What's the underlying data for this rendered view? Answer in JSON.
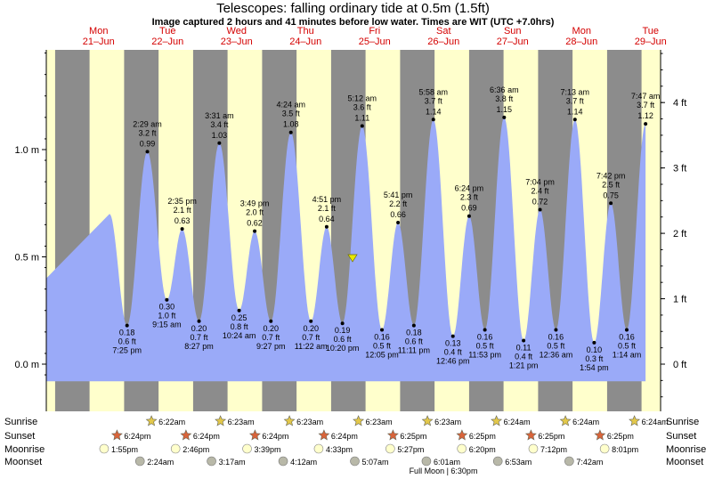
{
  "title": "Telescopes: falling  ordinary tide at 0.5m (1.5ft)",
  "subtitle": "Image captured 2 hours and 41 minutes before low water. Times are WIT (UTC +7.0hrs)",
  "days": [
    {
      "name": "Mon",
      "date": "21–Jun"
    },
    {
      "name": "Tue",
      "date": "22–Jun"
    },
    {
      "name": "Wed",
      "date": "23–Jun"
    },
    {
      "name": "Thu",
      "date": "24–Jun"
    },
    {
      "name": "Fri",
      "date": "25–Jun"
    },
    {
      "name": "Sat",
      "date": "26–Jun"
    },
    {
      "name": "Sun",
      "date": "27–Jun"
    },
    {
      "name": "Mon",
      "date": "28–Jun"
    },
    {
      "name": "Tue",
      "date": "29–Jun"
    }
  ],
  "left_axis": [
    "1.0 m",
    "0.5 m",
    "0.0 m"
  ],
  "right_axis": [
    "4 ft",
    "3 ft",
    "2 ft",
    "1 ft",
    "0 ft"
  ],
  "current_marker": {
    "height_m": 0.5
  },
  "colors": {
    "day": "#ffffcc",
    "night": "#8c8c8c",
    "tide": "#9aaaf8",
    "sunrise": "#e3c84a",
    "sunset": "#d9643a",
    "moonrise": "#ffffcc",
    "moonset": "#b8b8a8"
  },
  "chart_data": {
    "type": "area",
    "ylabel": "",
    "ylim": [
      -0.08,
      1.55
    ],
    "extremes": [
      {
        "type": "low",
        "time": "7:25 pm",
        "m": "0.18 m",
        "ft": "0.6 ft",
        "value": 0.18
      },
      {
        "type": "high",
        "time": "2:29 am",
        "ft": "3.2 ft",
        "m": "0.99 m",
        "value": 0.99
      },
      {
        "type": "low",
        "time": "9:15 am",
        "m": "0.30 m",
        "ft": "1.0 ft",
        "value": 0.3
      },
      {
        "type": "high",
        "time": "2:35 pm",
        "ft": "2.1 ft",
        "m": "0.63 m",
        "value": 0.63
      },
      {
        "type": "low",
        "time": "8:27 pm",
        "m": "0.20 m",
        "ft": "0.7 ft",
        "value": 0.2
      },
      {
        "type": "high",
        "time": "3:31 am",
        "ft": "3.4 ft",
        "m": "1.03 m",
        "value": 1.03
      },
      {
        "type": "low",
        "time": "10:24 am",
        "m": "0.25 m",
        "ft": "0.8 ft",
        "value": 0.25
      },
      {
        "type": "high",
        "time": "3:49 pm",
        "ft": "2.0 ft",
        "m": "0.62 m",
        "value": 0.62
      },
      {
        "type": "low",
        "time": "9:27 pm",
        "m": "0.20 m",
        "ft": "0.7 ft",
        "value": 0.2
      },
      {
        "type": "high",
        "time": "4:24 am",
        "ft": "3.5 ft",
        "m": "1.08 m",
        "value": 1.08
      },
      {
        "type": "low",
        "time": "11:22 am",
        "m": "0.20 m",
        "ft": "0.7 ft",
        "value": 0.2
      },
      {
        "type": "high",
        "time": "4:51 pm",
        "ft": "2.1 ft",
        "m": "0.64 m",
        "value": 0.64
      },
      {
        "type": "low",
        "time": "10:20 pm",
        "m": "0.19 m",
        "ft": "0.6 ft",
        "value": 0.19
      },
      {
        "type": "high",
        "time": "5:12 am",
        "ft": "3.6 ft",
        "m": "1.11 m",
        "value": 1.11
      },
      {
        "type": "low",
        "time": "12:05 pm",
        "m": "0.16 m",
        "ft": "0.5 ft",
        "value": 0.16
      },
      {
        "type": "high",
        "time": "5:41 pm",
        "ft": "2.2 ft",
        "m": "0.66 m",
        "value": 0.66
      },
      {
        "type": "low",
        "time": "11:11 pm",
        "m": "0.18 m",
        "ft": "0.6 ft",
        "value": 0.18
      },
      {
        "type": "high",
        "time": "5:58 am",
        "ft": "3.7 ft",
        "m": "1.14 m",
        "value": 1.14
      },
      {
        "type": "low",
        "time": "12:46 pm",
        "m": "0.13 m",
        "ft": "0.4 ft",
        "value": 0.13
      },
      {
        "type": "high",
        "time": "6:24 pm",
        "ft": "2.3 ft",
        "m": "0.69 m",
        "value": 0.69
      },
      {
        "type": "low",
        "time": "11:53 pm",
        "m": "0.16 m",
        "ft": "0.5 ft",
        "value": 0.16
      },
      {
        "type": "high",
        "time": "6:36 am",
        "ft": "3.8 ft",
        "m": "1.15 m",
        "value": 1.15
      },
      {
        "type": "low",
        "time": "1:21 pm",
        "m": "0.11 m",
        "ft": "0.4 ft",
        "value": 0.11
      },
      {
        "type": "high",
        "time": "7:04 pm",
        "ft": "2.4 ft",
        "m": "0.72 m",
        "value": 0.72
      },
      {
        "type": "low",
        "time": "12:36 am",
        "m": "0.16 m",
        "ft": "0.5 ft",
        "value": 0.16
      },
      {
        "type": "high",
        "time": "7:13 am",
        "ft": "3.7 ft",
        "m": "1.14 m",
        "value": 1.14
      },
      {
        "type": "low",
        "time": "1:54 pm",
        "m": "0.10 m",
        "ft": "0.3 ft",
        "value": 0.1
      },
      {
        "type": "high",
        "time": "7:42 pm",
        "ft": "2.5 ft",
        "m": "0.75 m",
        "value": 0.75
      },
      {
        "type": "low",
        "time": "1:14 am",
        "m": "0.16 m",
        "ft": "0.5 ft",
        "value": 0.16
      },
      {
        "type": "high",
        "time": "7:47 am",
        "ft": "3.7 ft",
        "m": "1.12 m",
        "value": 1.12
      }
    ]
  },
  "sun_moon": {
    "labels": {
      "sunrise": "Sunrise",
      "sunset": "Sunset",
      "moonrise": "Moonrise",
      "moonset": "Moonset"
    },
    "sunrise": [
      "6:22am",
      "6:23am",
      "6:23am",
      "6:23am",
      "6:23am",
      "6:24am",
      "6:24am",
      "6:24am"
    ],
    "sunset": [
      "6:24pm",
      "6:24pm",
      "6:24pm",
      "6:24pm",
      "6:25pm",
      "6:25pm",
      "6:25pm",
      "6:25pm"
    ],
    "moonrise": [
      "1:55pm",
      "2:46pm",
      "3:39pm",
      "4:33pm",
      "5:27pm",
      "6:20pm",
      "7:12pm",
      "8:01pm"
    ],
    "moonset": [
      "2:24am",
      "3:17am",
      "4:12am",
      "5:07am",
      "6:01am",
      "6:53am",
      "7:42am"
    ],
    "full_moon": "Full Moon | 6:30pm"
  }
}
